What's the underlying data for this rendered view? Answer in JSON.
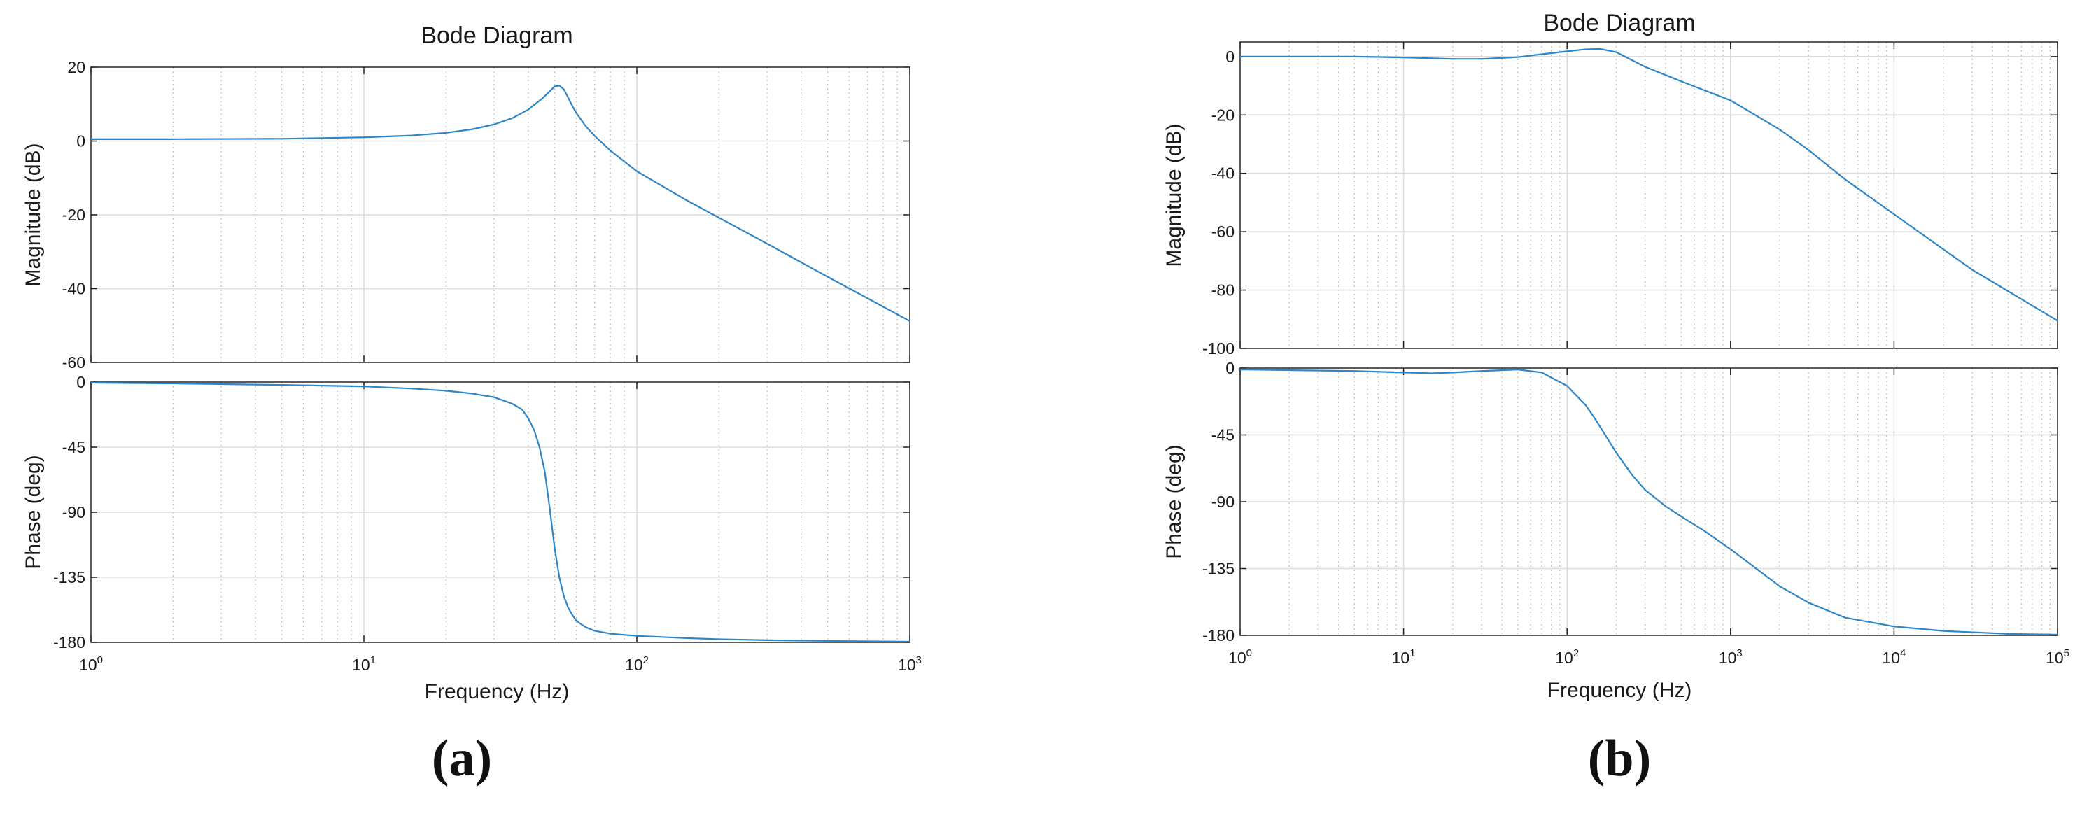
{
  "chart_data": [
    {
      "type": "line",
      "caption": "(a)",
      "title": "Bode Diagram",
      "xlabel": "Frequency  (Hz)",
      "x_scale": "log",
      "xlim": [
        1,
        1000
      ],
      "x_ticks": [
        {
          "base": "10",
          "exp": "0"
        },
        {
          "base": "10",
          "exp": "1"
        },
        {
          "base": "10",
          "exp": "2"
        },
        {
          "base": "10",
          "exp": "3"
        }
      ],
      "grid": true,
      "line_color": "#2f86c6",
      "magnitude": {
        "ylabel": "Magnitude (dB)",
        "ylim": [
          -60,
          20
        ],
        "yticks": [
          "20",
          "0",
          "-20",
          "-40",
          "-60"
        ],
        "x": [
          1,
          2,
          5,
          10,
          15,
          20,
          25,
          30,
          35,
          40,
          45,
          48,
          50,
          52,
          54,
          56,
          58,
          60,
          65,
          70,
          80,
          100,
          150,
          200,
          300,
          500,
          700,
          1000
        ],
        "y": [
          0.5,
          0.5,
          0.6,
          1.0,
          1.5,
          2.2,
          3.2,
          4.5,
          6.2,
          8.5,
          11.5,
          13.5,
          14.8,
          15.0,
          14.0,
          11.8,
          9.5,
          7.6,
          4.0,
          1.4,
          -2.6,
          -8.2,
          -15.8,
          -20.8,
          -27.8,
          -36.8,
          -42.6,
          -48.8
        ]
      },
      "phase": {
        "ylabel": "Phase (deg)",
        "ylim": [
          -180,
          0
        ],
        "yticks": [
          "0",
          "-45",
          "-90",
          "-135",
          "-180"
        ],
        "x": [
          1,
          2,
          5,
          10,
          15,
          20,
          25,
          30,
          35,
          38,
          40,
          42,
          44,
          46,
          48,
          50,
          52,
          54,
          56,
          58,
          60,
          62,
          65,
          70,
          80,
          100,
          150,
          200,
          300,
          500,
          1000
        ],
        "y": [
          -0.5,
          -1,
          -2,
          -3,
          -4.5,
          -6,
          -8,
          -10.5,
          -15,
          -19,
          -25,
          -33,
          -45,
          -62,
          -88,
          -115,
          -135,
          -148,
          -156,
          -161,
          -165,
          -167,
          -169.5,
          -172,
          -174,
          -175.5,
          -177,
          -177.8,
          -178.5,
          -179,
          -179.5
        ]
      }
    },
    {
      "type": "line",
      "caption": "(b)",
      "title": "Bode Diagram",
      "xlabel": "Frequency  (Hz)",
      "x_scale": "log",
      "xlim": [
        1,
        100000
      ],
      "x_ticks": [
        {
          "base": "10",
          "exp": "0"
        },
        {
          "base": "10",
          "exp": "1"
        },
        {
          "base": "10",
          "exp": "2"
        },
        {
          "base": "10",
          "exp": "3"
        },
        {
          "base": "10",
          "exp": "4"
        },
        {
          "base": "10",
          "exp": "5"
        }
      ],
      "grid": true,
      "line_color": "#2f86c6",
      "magnitude": {
        "ylabel": "Magnitude (dB)",
        "ylim": [
          -100,
          5
        ],
        "yticks": [
          "0",
          "-20",
          "-40",
          "-60",
          "-80",
          "-100"
        ],
        "x": [
          1,
          5,
          10,
          20,
          30,
          50,
          70,
          100,
          130,
          160,
          200,
          300,
          500,
          1000,
          2000,
          3000,
          5000,
          10000,
          30000,
          100000
        ],
        "y": [
          0,
          0,
          -0.3,
          -0.8,
          -0.8,
          -0.2,
          0.8,
          1.8,
          2.5,
          2.6,
          1.5,
          -3.5,
          -8.5,
          -15,
          -25,
          -32,
          -42,
          -54,
          -73,
          -90.5
        ]
      },
      "phase": {
        "ylabel": "Phase (deg)",
        "ylim": [
          -180,
          0
        ],
        "yticks": [
          "0",
          "-45",
          "-90",
          "-135",
          "-180"
        ],
        "x": [
          1,
          5,
          10,
          15,
          20,
          30,
          50,
          70,
          100,
          130,
          150,
          200,
          250,
          300,
          400,
          500,
          700,
          1000,
          2000,
          3000,
          5000,
          10000,
          20000,
          50000,
          100000
        ],
        "y": [
          -1,
          -2,
          -3,
          -3.5,
          -3,
          -2,
          -1,
          -3,
          -12,
          -25,
          -35,
          -57,
          -72,
          -82,
          -93,
          -100,
          -110,
          -122,
          -147,
          -158,
          -168,
          -174,
          -177,
          -179,
          -179.5
        ]
      }
    }
  ]
}
